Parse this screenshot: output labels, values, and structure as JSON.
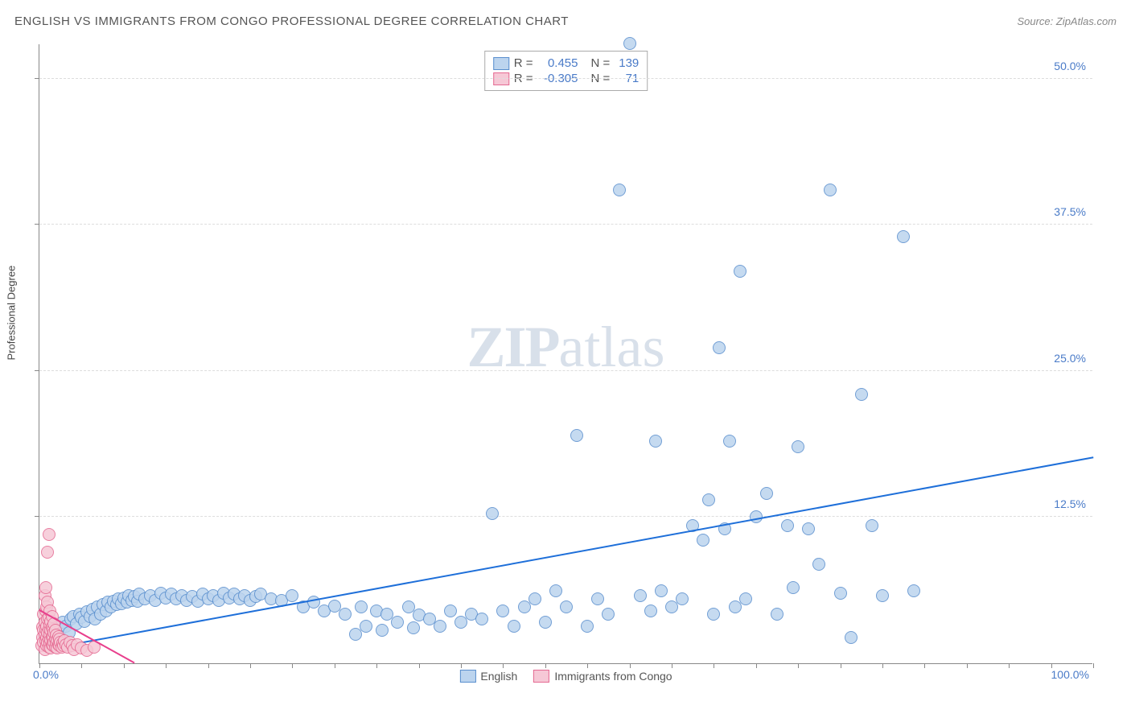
{
  "header": {
    "title": "ENGLISH VS IMMIGRANTS FROM CONGO PROFESSIONAL DEGREE CORRELATION CHART",
    "source": "Source: ZipAtlas.com"
  },
  "yaxis_label": "Professional Degree",
  "watermark": {
    "zip": "ZIP",
    "atlas": "atlas"
  },
  "chart": {
    "type": "scatter",
    "xlim": [
      0,
      100
    ],
    "ylim": [
      0,
      53
    ],
    "background_color": "#ffffff",
    "grid_color": "#dddddd",
    "axis_color": "#888888",
    "xtick_positions": [
      0,
      4,
      8,
      12,
      16,
      20,
      24,
      28,
      32,
      36,
      40,
      44,
      48,
      52,
      56,
      60,
      64,
      68,
      72,
      76,
      80,
      84,
      88,
      92,
      96,
      100
    ],
    "yticks": [
      {
        "v": 12.5,
        "label": "12.5%"
      },
      {
        "v": 25.0,
        "label": "25.0%"
      },
      {
        "v": 37.5,
        "label": "37.5%"
      },
      {
        "v": 50.0,
        "label": "50.0%"
      }
    ],
    "xtick_labels": {
      "start": "0.0%",
      "end": "100.0%"
    },
    "marker_radius": 8,
    "series": [
      {
        "name": "English",
        "fill": "#bcd4ee",
        "stroke": "#5a8fce",
        "stroke_width": 1,
        "opacity": 0.85,
        "trend": {
          "x1": 0,
          "y1": 1.0,
          "x2": 100,
          "y2": 17.5,
          "color": "#1e6fd9",
          "width": 2
        },
        "stats": {
          "R_label": "R =",
          "R": "0.455",
          "N_label": "N =",
          "N": "139"
        },
        "points": [
          [
            1,
            2.5
          ],
          [
            1.5,
            3
          ],
          [
            2,
            2.8
          ],
          [
            2.2,
            3.5
          ],
          [
            2.5,
            3.2
          ],
          [
            2.8,
            2.6
          ],
          [
            3,
            3.8
          ],
          [
            3.2,
            4
          ],
          [
            3.5,
            3.4
          ],
          [
            3.8,
            4.2
          ],
          [
            4,
            3.9
          ],
          [
            4.3,
            3.6
          ],
          [
            4.5,
            4.4
          ],
          [
            4.8,
            4
          ],
          [
            5,
            4.6
          ],
          [
            5.3,
            3.8
          ],
          [
            5.5,
            4.8
          ],
          [
            5.8,
            4.2
          ],
          [
            6,
            5
          ],
          [
            6.3,
            4.5
          ],
          [
            6.5,
            5.2
          ],
          [
            6.8,
            4.8
          ],
          [
            7,
            5.3
          ],
          [
            7.3,
            5
          ],
          [
            7.5,
            5.5
          ],
          [
            7.8,
            5.1
          ],
          [
            8,
            5.6
          ],
          [
            8.3,
            5.2
          ],
          [
            8.5,
            5.8
          ],
          [
            8.8,
            5.4
          ],
          [
            9,
            5.7
          ],
          [
            9.3,
            5.3
          ],
          [
            9.5,
            5.9
          ],
          [
            10,
            5.5
          ],
          [
            10.5,
            5.8
          ],
          [
            11,
            5.4
          ],
          [
            11.5,
            6
          ],
          [
            12,
            5.6
          ],
          [
            12.5,
            5.9
          ],
          [
            13,
            5.5
          ],
          [
            13.5,
            5.8
          ],
          [
            14,
            5.4
          ],
          [
            14.5,
            5.7
          ],
          [
            15,
            5.3
          ],
          [
            15.5,
            5.9
          ],
          [
            16,
            5.5
          ],
          [
            16.5,
            5.8
          ],
          [
            17,
            5.4
          ],
          [
            17.5,
            6
          ],
          [
            18,
            5.6
          ],
          [
            18.5,
            5.9
          ],
          [
            19,
            5.5
          ],
          [
            19.5,
            5.8
          ],
          [
            20,
            5.4
          ],
          [
            20.5,
            5.7
          ],
          [
            21,
            5.9
          ],
          [
            22,
            5.5
          ],
          [
            23,
            5.4
          ],
          [
            24,
            5.8
          ],
          [
            25,
            4.8
          ],
          [
            26,
            5.2
          ],
          [
            27,
            4.5
          ],
          [
            28,
            4.9
          ],
          [
            29,
            4.2
          ],
          [
            30,
            2.5
          ],
          [
            30.5,
            4.8
          ],
          [
            31,
            3.2
          ],
          [
            32,
            4.5
          ],
          [
            32.5,
            2.8
          ],
          [
            33,
            4.2
          ],
          [
            34,
            3.5
          ],
          [
            35,
            4.8
          ],
          [
            35.5,
            3
          ],
          [
            36,
            4.1
          ],
          [
            37,
            3.8
          ],
          [
            38,
            3.2
          ],
          [
            39,
            4.5
          ],
          [
            40,
            3.5
          ],
          [
            41,
            4.2
          ],
          [
            42,
            3.8
          ],
          [
            43,
            12.8
          ],
          [
            44,
            4.5
          ],
          [
            45,
            3.2
          ],
          [
            46,
            4.8
          ],
          [
            47,
            5.5
          ],
          [
            48,
            3.5
          ],
          [
            49,
            6.2
          ],
          [
            50,
            4.8
          ],
          [
            51,
            19.5
          ],
          [
            52,
            3.2
          ],
          [
            53,
            5.5
          ],
          [
            54,
            4.2
          ],
          [
            55,
            40.5
          ],
          [
            56,
            53
          ],
          [
            57,
            5.8
          ],
          [
            58,
            4.5
          ],
          [
            58.5,
            19
          ],
          [
            59,
            6.2
          ],
          [
            60,
            4.8
          ],
          [
            61,
            5.5
          ],
          [
            62,
            11.8
          ],
          [
            63,
            10.5
          ],
          [
            63.5,
            14
          ],
          [
            64,
            4.2
          ],
          [
            64.5,
            27
          ],
          [
            65,
            11.5
          ],
          [
            65.5,
            19
          ],
          [
            66,
            4.8
          ],
          [
            66.5,
            33.5
          ],
          [
            67,
            5.5
          ],
          [
            68,
            12.5
          ],
          [
            69,
            14.5
          ],
          [
            70,
            4.2
          ],
          [
            71,
            11.8
          ],
          [
            71.5,
            6.5
          ],
          [
            72,
            18.5
          ],
          [
            73,
            11.5
          ],
          [
            74,
            8.5
          ],
          [
            75,
            40.5
          ],
          [
            76,
            6
          ],
          [
            77,
            2.2
          ],
          [
            78,
            23
          ],
          [
            79,
            11.8
          ],
          [
            80,
            5.8
          ],
          [
            82,
            36.5
          ],
          [
            83,
            6.2
          ]
        ]
      },
      {
        "name": "Immigrants from Congo",
        "fill": "#f6c8d6",
        "stroke": "#e56a92",
        "stroke_width": 1,
        "opacity": 0.85,
        "trend": {
          "x1": 0,
          "y1": 4.5,
          "x2": 9,
          "y2": 0,
          "color": "#e83e8c",
          "width": 2
        },
        "stats": {
          "R_label": "R =",
          "R": "-0.305",
          "N_label": "N =",
          "N": "71"
        },
        "points": [
          [
            0.2,
            1.5
          ],
          [
            0.3,
            2.2
          ],
          [
            0.3,
            3.1
          ],
          [
            0.4,
            1.8
          ],
          [
            0.4,
            2.8
          ],
          [
            0.4,
            4.2
          ],
          [
            0.5,
            1.2
          ],
          [
            0.5,
            2.5
          ],
          [
            0.5,
            3.5
          ],
          [
            0.5,
            5.8
          ],
          [
            0.6,
            1.9
          ],
          [
            0.6,
            2.9
          ],
          [
            0.6,
            4.5
          ],
          [
            0.6,
            6.5
          ],
          [
            0.7,
            1.5
          ],
          [
            0.7,
            2.2
          ],
          [
            0.7,
            3.2
          ],
          [
            0.7,
            4.8
          ],
          [
            0.8,
            1.8
          ],
          [
            0.8,
            2.6
          ],
          [
            0.8,
            3.8
          ],
          [
            0.8,
            5.2
          ],
          [
            0.8,
            9.5
          ],
          [
            0.9,
            1.4
          ],
          [
            0.9,
            2.1
          ],
          [
            0.9,
            2.9
          ],
          [
            0.9,
            3.9
          ],
          [
            0.9,
            11
          ],
          [
            1.0,
            1.7
          ],
          [
            1.0,
            2.4
          ],
          [
            1.0,
            3.3
          ],
          [
            1.0,
            4.5
          ],
          [
            1.1,
            1.3
          ],
          [
            1.1,
            2.0
          ],
          [
            1.1,
            2.8
          ],
          [
            1.1,
            3.6
          ],
          [
            1.2,
            1.6
          ],
          [
            1.2,
            2.3
          ],
          [
            1.2,
            3.1
          ],
          [
            1.2,
            4.0
          ],
          [
            1.3,
            1.5
          ],
          [
            1.3,
            2.2
          ],
          [
            1.3,
            2.9
          ],
          [
            1.4,
            1.8
          ],
          [
            1.4,
            2.6
          ],
          [
            1.4,
            3.4
          ],
          [
            1.5,
            1.4
          ],
          [
            1.5,
            2.1
          ],
          [
            1.5,
            2.8
          ],
          [
            1.6,
            1.7
          ],
          [
            1.6,
            2.4
          ],
          [
            1.7,
            1.3
          ],
          [
            1.7,
            2.0
          ],
          [
            1.8,
            1.6
          ],
          [
            1.8,
            2.3
          ],
          [
            1.9,
            1.5
          ],
          [
            1.9,
            2.1
          ],
          [
            2.0,
            1.8
          ],
          [
            2.1,
            1.4
          ],
          [
            2.2,
            1.7
          ],
          [
            2.3,
            1.5
          ],
          [
            2.4,
            1.9
          ],
          [
            2.5,
            1.6
          ],
          [
            2.7,
            1.4
          ],
          [
            2.9,
            1.8
          ],
          [
            3.1,
            1.5
          ],
          [
            3.3,
            1.2
          ],
          [
            3.6,
            1.6
          ],
          [
            4.0,
            1.3
          ],
          [
            4.5,
            1.1
          ],
          [
            5.2,
            1.4
          ]
        ]
      }
    ]
  },
  "legend": {
    "series1_label": "English",
    "series2_label": "Immigrants from Congo"
  }
}
